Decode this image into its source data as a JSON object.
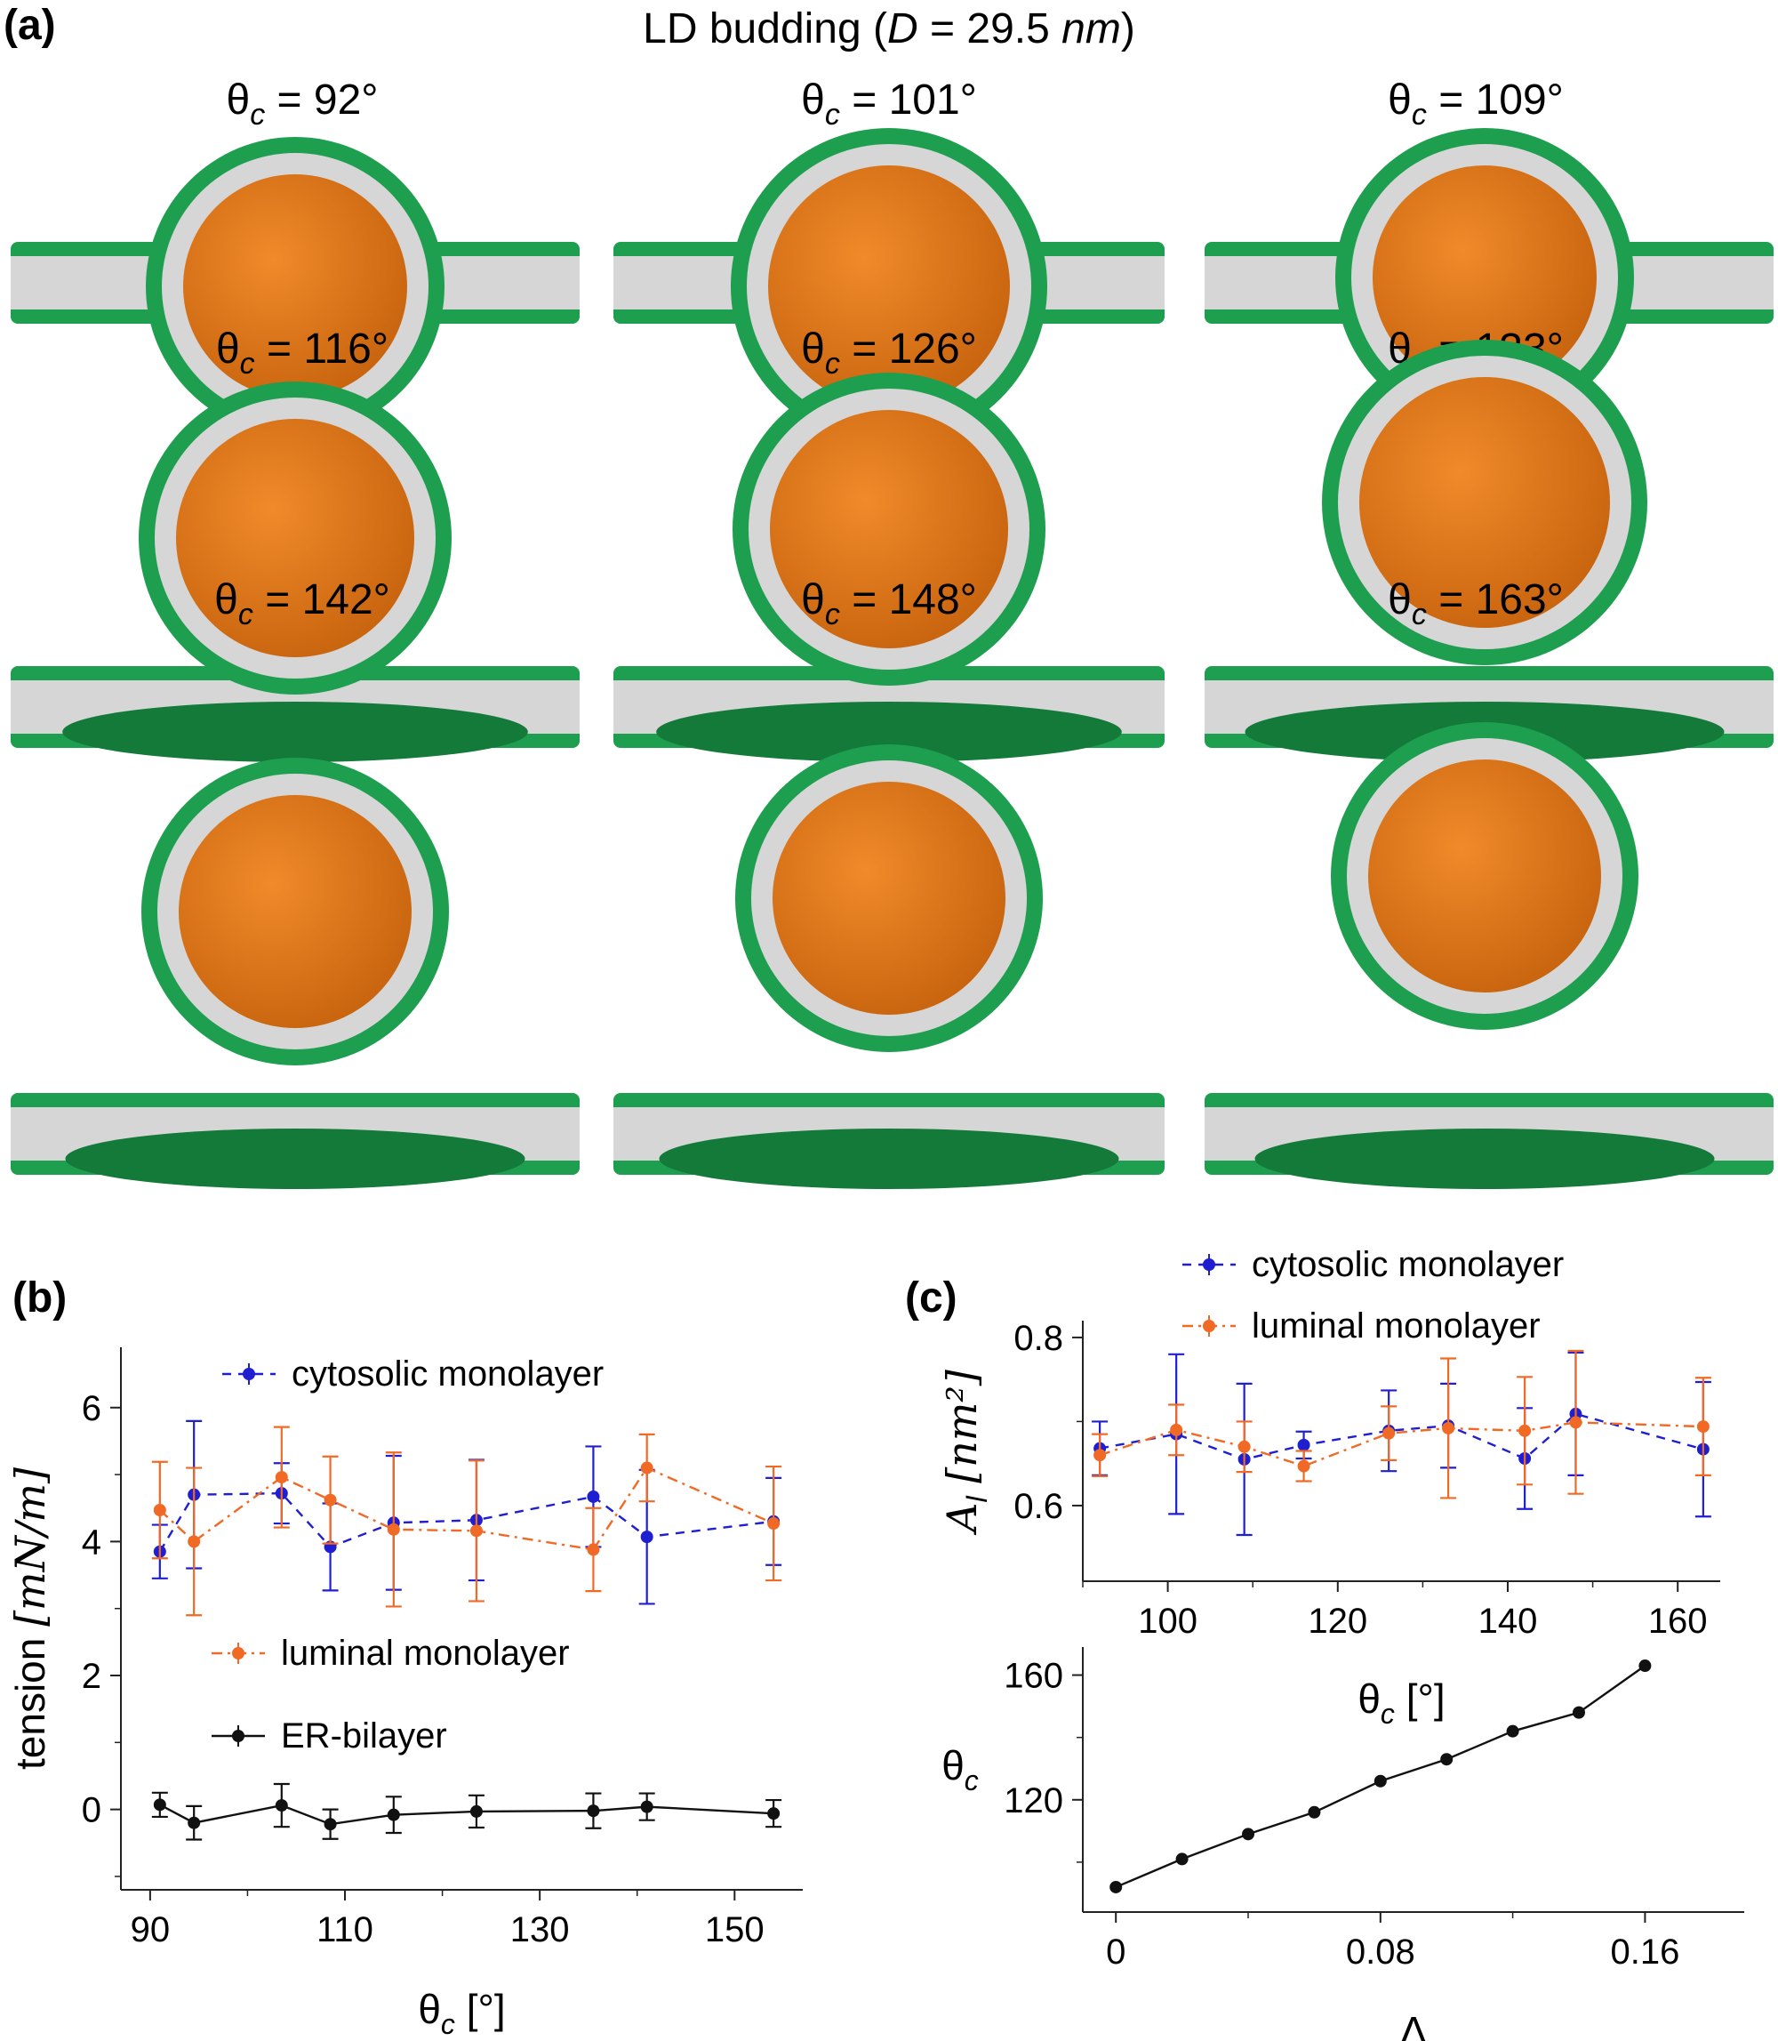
{
  "panel_a": {
    "letter": "(a)",
    "title_prefix": "LD budding (",
    "title_var": "D",
    "title_mid": " = 29.5 ",
    "title_unit": "nm",
    "title_suffix": ")",
    "snapshots": [
      {
        "symbol": "θ",
        "sub": "c",
        "value": " = 92°"
      },
      {
        "symbol": "θ",
        "sub": "c",
        "value": " = 101°"
      },
      {
        "symbol": "θ",
        "sub": "c",
        "value": " = 109°"
      },
      {
        "symbol": "θ",
        "sub": "c",
        "value": " = 116°"
      },
      {
        "symbol": "θ",
        "sub": "c",
        "value": " = 126°"
      },
      {
        "symbol": "θ",
        "sub": "c",
        "value": " = 133°"
      },
      {
        "symbol": "θ",
        "sub": "c",
        "value": " = 142°"
      },
      {
        "symbol": "θ",
        "sub": "c",
        "value": " = 148°"
      },
      {
        "symbol": "θ",
        "sub": "c",
        "value": " = 163°"
      }
    ],
    "colors": {
      "headgroup": "#1e9e4f",
      "headgroup_dark": "#137a39",
      "tail": "#d6d6d6",
      "core": "#e07a1c",
      "core_dark": "#b85c0d"
    }
  },
  "chart_data": [
    {
      "id": "b",
      "letter": "(b)",
      "type": "line",
      "xlabel_symbol": "θ",
      "xlabel_sub": "c",
      "xlabel_unit": " [°]",
      "ylabel_text": "tension ",
      "ylabel_unit": "[mN/m]",
      "xlim": [
        87,
        157
      ],
      "ylim": [
        -1.2,
        6.9
      ],
      "xticks": [
        90,
        110,
        130,
        150
      ],
      "yticks": [
        0,
        2,
        4,
        6
      ],
      "series": [
        {
          "name": "cytosolic monolayer",
          "color": "#1f1fd1",
          "dash": "10,8",
          "x": [
            91,
            94.5,
            103.5,
            108.5,
            115,
            123.5,
            135.5,
            141,
            154
          ],
          "y": [
            3.85,
            4.7,
            4.72,
            3.92,
            4.28,
            4.32,
            4.67,
            4.07,
            4.3
          ],
          "err": [
            0.4,
            1.1,
            0.45,
            0.65,
            1.0,
            0.9,
            0.75,
            1.0,
            0.65
          ]
        },
        {
          "name": "luminal monolayer",
          "color": "#f06a25",
          "dash": "12,6,3,6",
          "x": [
            91,
            94.5,
            103.5,
            108.5,
            115,
            123.5,
            135.5,
            141,
            154
          ],
          "y": [
            4.47,
            4.0,
            4.96,
            4.62,
            4.18,
            4.16,
            3.88,
            5.1,
            4.27
          ],
          "err": [
            0.72,
            1.1,
            0.75,
            0.65,
            1.15,
            1.05,
            0.62,
            0.5,
            0.85
          ]
        },
        {
          "name": "ER-bilayer",
          "color": "#111111",
          "dash": "",
          "x": [
            91,
            94.5,
            103.5,
            108.5,
            115,
            123.5,
            135.5,
            141,
            154
          ],
          "y": [
            0.07,
            -0.2,
            0.06,
            -0.22,
            -0.08,
            -0.03,
            -0.02,
            0.04,
            -0.06
          ],
          "err": [
            0.18,
            0.25,
            0.32,
            0.22,
            0.27,
            0.24,
            0.26,
            0.2,
            0.2
          ]
        }
      ]
    },
    {
      "id": "c-top",
      "letter": "(c)",
      "type": "line",
      "xlabel_symbol": "θ",
      "xlabel_sub": "c",
      "xlabel_unit": " [°]",
      "ylabel_symbol": "A",
      "ylabel_sub": "l",
      "ylabel_unit": " [nm²]",
      "xlim": [
        90,
        165
      ],
      "ylim": [
        0.51,
        0.82
      ],
      "xticks": [
        100,
        120,
        140,
        160
      ],
      "yticks": [
        0.6,
        0.8
      ],
      "series": [
        {
          "name": "cytosolic monolayer",
          "color": "#1f1fd1",
          "dash": "10,8",
          "x": [
            92,
            101,
            109,
            116,
            126,
            133,
            142,
            148,
            163
          ],
          "y": [
            0.668,
            0.685,
            0.655,
            0.672,
            0.689,
            0.695,
            0.656,
            0.709,
            0.667
          ],
          "err": [
            0.032,
            0.095,
            0.09,
            0.016,
            0.048,
            0.05,
            0.06,
            0.073,
            0.08
          ]
        },
        {
          "name": "luminal monolayer",
          "color": "#f06a25",
          "dash": "12,6,3,6",
          "x": [
            92,
            101,
            109,
            116,
            126,
            133,
            142,
            148,
            163
          ],
          "y": [
            0.66,
            0.69,
            0.67,
            0.647,
            0.686,
            0.692,
            0.689,
            0.699,
            0.694
          ],
          "err": [
            0.025,
            0.03,
            0.03,
            0.018,
            0.032,
            0.083,
            0.064,
            0.085,
            0.058
          ]
        }
      ]
    },
    {
      "id": "c-bottom",
      "type": "line",
      "xlabel_symbol": "Δ",
      "ylabel_symbol": "θ",
      "ylabel_sub": "c",
      "xlim": [
        -0.01,
        0.19
      ],
      "ylim": [
        84,
        169
      ],
      "xticks": [
        0,
        0.08,
        0.16
      ],
      "yticks": [
        120,
        160
      ],
      "series": [
        {
          "name": "",
          "color": "#111111",
          "dash": "",
          "x": [
            0,
            0.02,
            0.04,
            0.06,
            0.08,
            0.1,
            0.12,
            0.14,
            0.16
          ],
          "y": [
            92,
            101,
            109,
            116,
            126,
            133,
            142,
            148,
            163
          ]
        }
      ]
    }
  ]
}
